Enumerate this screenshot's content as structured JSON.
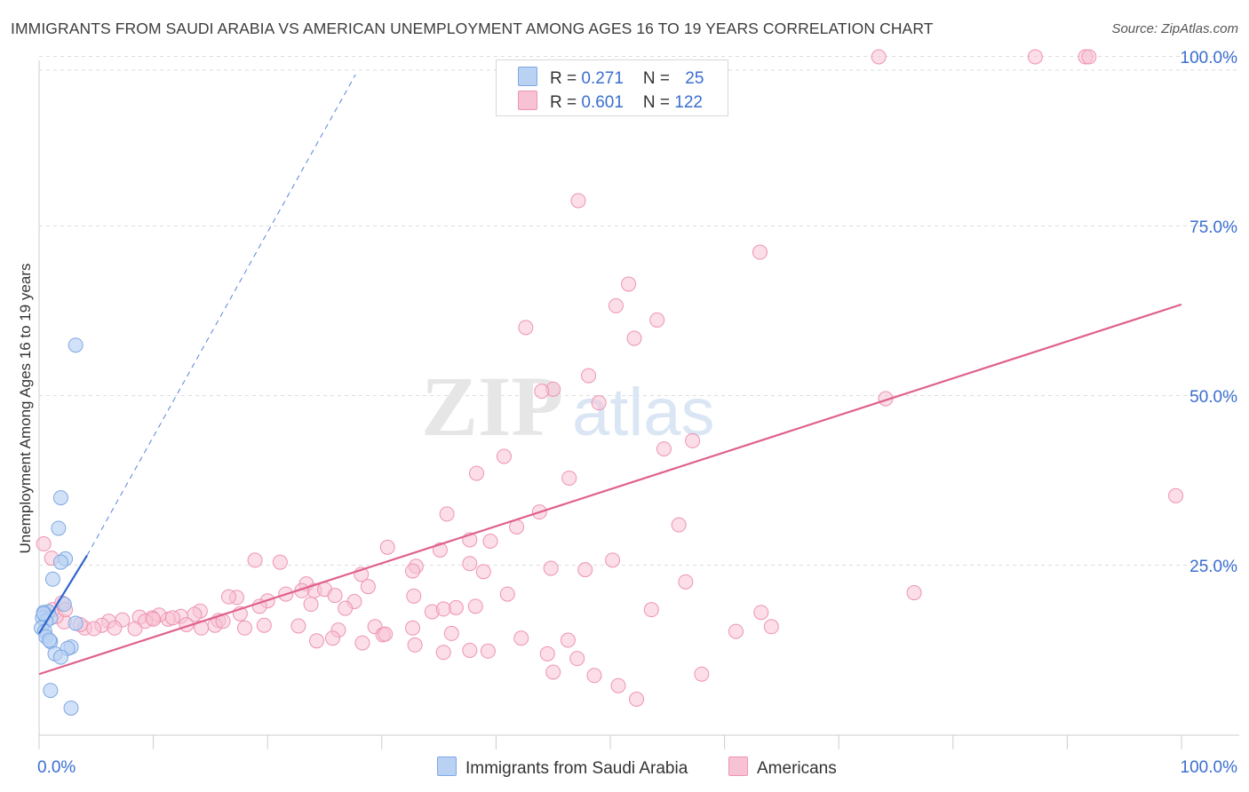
{
  "chart_data": {
    "type": "scatter",
    "title": "IMMIGRANTS FROM SAUDI ARABIA VS AMERICAN UNEMPLOYMENT AMONG AGES 16 TO 19 YEARS CORRELATION CHART",
    "source": "Source: ZipAtlas.com",
    "ylabel": "Unemployment Among Ages 16 to 19 years",
    "xlabel": "",
    "xlim": [
      0,
      100
    ],
    "ylim": [
      0,
      102
    ],
    "x_tick_labels": {
      "left": "0.0%",
      "right": "100.0%"
    },
    "y_tick_labels": [
      "25.0%",
      "50.0%",
      "75.0%",
      "100.0%"
    ],
    "y_ticks": [
      25,
      50,
      75,
      100
    ],
    "grid": true,
    "watermark": {
      "part1": "ZIP",
      "part2": "atlas"
    },
    "colors": {
      "blue_fill": "#b9d1f2",
      "blue_stroke": "#7fa8e3",
      "blue_line": "#2f66cc",
      "pink_fill": "#f7c3d4",
      "pink_stroke": "#ee94b2",
      "pink_line": "#e0608f",
      "value_text": "#3a6ed0"
    },
    "series": [
      {
        "name": "Immigrants from Saudi Arabia",
        "legend_label": "Immigrants from Saudi Arabia",
        "r_label": "R = ",
        "r": "0.271",
        "n_label": "N = ",
        "n": "25",
        "trend": {
          "x0": 0,
          "y0": 15.0,
          "x1": 4.2,
          "y1": 26.5,
          "ext_x1": 27.7,
          "ext_y1": 100
        },
        "points": [
          [
            3.2,
            57.5
          ],
          [
            1.9,
            35.0
          ],
          [
            1.7,
            30.5
          ],
          [
            1.2,
            23.0
          ],
          [
            2.3,
            26.0
          ],
          [
            1.9,
            25.5
          ],
          [
            2.2,
            19.3
          ],
          [
            0.8,
            18.2
          ],
          [
            0.4,
            18.1
          ],
          [
            0.3,
            17.3
          ],
          [
            1.0,
            17.3
          ],
          [
            0.6,
            16.8
          ],
          [
            3.2,
            16.5
          ],
          [
            0.2,
            15.8
          ],
          [
            0.5,
            15.3
          ],
          [
            0.6,
            14.5
          ],
          [
            1.0,
            13.8
          ],
          [
            2.8,
            13.0
          ],
          [
            2.5,
            12.8
          ],
          [
            1.4,
            12.0
          ],
          [
            1.9,
            11.5
          ],
          [
            1.0,
            6.6
          ],
          [
            2.8,
            4.0
          ],
          [
            0.4,
            17.9
          ],
          [
            0.9,
            14.0
          ]
        ]
      },
      {
        "name": "Americans",
        "legend_label": "Americans",
        "r_label": "R = ",
        "r": "0.601",
        "n_label": "N = ",
        "n": "122",
        "trend": {
          "x0": 0,
          "y0": 9.0,
          "x1": 100,
          "y1": 63.5
        },
        "points": [
          [
            73.5,
            100
          ],
          [
            87.2,
            100
          ],
          [
            91.6,
            100
          ],
          [
            91.9,
            100
          ],
          [
            47.2,
            78.8
          ],
          [
            63.1,
            71.2
          ],
          [
            51.6,
            66.5
          ],
          [
            50.5,
            63.3
          ],
          [
            54.1,
            61.2
          ],
          [
            42.6,
            60.1
          ],
          [
            52.1,
            58.5
          ],
          [
            48.1,
            53.0
          ],
          [
            45.0,
            51.0
          ],
          [
            44.0,
            50.7
          ],
          [
            49.0,
            49.0
          ],
          [
            74.1,
            49.6
          ],
          [
            57.2,
            43.4
          ],
          [
            54.7,
            42.2
          ],
          [
            40.7,
            41.1
          ],
          [
            38.3,
            38.6
          ],
          [
            46.4,
            37.9
          ],
          [
            99.5,
            35.3
          ],
          [
            43.8,
            32.9
          ],
          [
            35.7,
            32.6
          ],
          [
            56.0,
            31.0
          ],
          [
            41.8,
            30.7
          ],
          [
            37.7,
            28.8
          ],
          [
            39.5,
            28.6
          ],
          [
            30.5,
            27.7
          ],
          [
            35.1,
            27.3
          ],
          [
            18.9,
            25.8
          ],
          [
            21.1,
            25.5
          ],
          [
            37.7,
            25.3
          ],
          [
            33.0,
            24.9
          ],
          [
            50.2,
            25.8
          ],
          [
            44.8,
            24.6
          ],
          [
            47.8,
            24.4
          ],
          [
            32.7,
            24.2
          ],
          [
            38.9,
            24.1
          ],
          [
            28.2,
            23.7
          ],
          [
            23.4,
            22.3
          ],
          [
            56.6,
            22.6
          ],
          [
            24.1,
            21.3
          ],
          [
            28.8,
            21.9
          ],
          [
            25.0,
            21.5
          ],
          [
            23.0,
            21.3
          ],
          [
            21.6,
            20.8
          ],
          [
            17.3,
            20.3
          ],
          [
            16.6,
            20.4
          ],
          [
            25.9,
            20.6
          ],
          [
            41.0,
            20.8
          ],
          [
            32.8,
            20.5
          ],
          [
            76.6,
            21.0
          ],
          [
            27.6,
            19.7
          ],
          [
            20.0,
            19.8
          ],
          [
            23.8,
            19.3
          ],
          [
            19.3,
            19.0
          ],
          [
            14.1,
            18.3
          ],
          [
            13.6,
            17.8
          ],
          [
            17.6,
            17.9
          ],
          [
            26.8,
            18.7
          ],
          [
            34.4,
            18.2
          ],
          [
            36.5,
            18.8
          ],
          [
            38.2,
            19.0
          ],
          [
            35.4,
            18.6
          ],
          [
            53.6,
            18.5
          ],
          [
            63.2,
            18.1
          ],
          [
            15.7,
            16.9
          ],
          [
            12.4,
            17.5
          ],
          [
            11.3,
            17.1
          ],
          [
            10.5,
            17.7
          ],
          [
            9.9,
            17.3
          ],
          [
            8.8,
            17.4
          ],
          [
            7.3,
            17.0
          ],
          [
            6.1,
            16.8
          ],
          [
            5.5,
            16.2
          ],
          [
            4.0,
            15.8
          ],
          [
            3.6,
            16.3
          ],
          [
            2.2,
            16.7
          ],
          [
            1.5,
            17.5
          ],
          [
            1.2,
            18.5
          ],
          [
            2.0,
            19.5
          ],
          [
            4.8,
            15.7
          ],
          [
            6.6,
            15.8
          ],
          [
            8.4,
            15.7
          ],
          [
            9.3,
            16.8
          ],
          [
            10.0,
            17.1
          ],
          [
            11.7,
            17.3
          ],
          [
            12.9,
            16.3
          ],
          [
            14.2,
            15.8
          ],
          [
            15.4,
            16.2
          ],
          [
            16.1,
            16.8
          ],
          [
            18.0,
            15.8
          ],
          [
            19.7,
            16.2
          ],
          [
            22.7,
            16.1
          ],
          [
            26.2,
            15.5
          ],
          [
            29.4,
            16.0
          ],
          [
            30.1,
            14.8
          ],
          [
            32.7,
            15.8
          ],
          [
            36.1,
            15.0
          ],
          [
            42.2,
            14.3
          ],
          [
            46.3,
            14.0
          ],
          [
            61.0,
            15.3
          ],
          [
            64.1,
            16.0
          ],
          [
            24.3,
            13.9
          ],
          [
            25.7,
            14.3
          ],
          [
            28.3,
            13.6
          ],
          [
            30.3,
            14.9
          ],
          [
            32.9,
            13.3
          ],
          [
            35.4,
            12.2
          ],
          [
            37.7,
            12.5
          ],
          [
            39.3,
            12.4
          ],
          [
            44.5,
            12.0
          ],
          [
            47.1,
            11.3
          ],
          [
            45.0,
            9.3
          ],
          [
            48.6,
            8.8
          ],
          [
            58.0,
            9.0
          ],
          [
            50.7,
            7.3
          ],
          [
            52.3,
            5.3
          ],
          [
            0.4,
            28.2
          ],
          [
            1.1,
            26.1
          ],
          [
            2.3,
            18.5
          ]
        ]
      }
    ]
  }
}
